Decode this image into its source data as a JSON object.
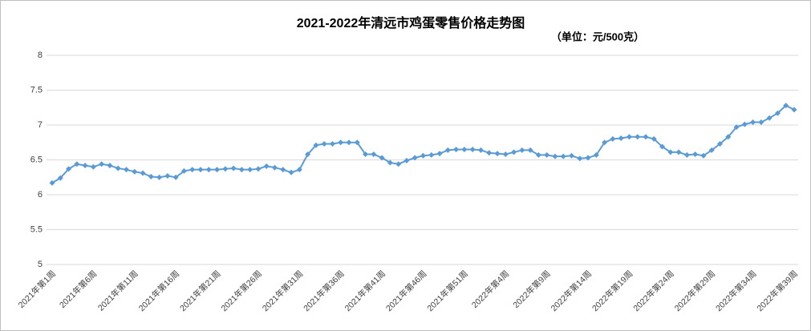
{
  "chart_data": {
    "type": "line",
    "title": "2021-2022年清远市鸡蛋零售价格走势图",
    "subtitle": "（单位：元/500克）",
    "categories": [
      "2021年第1周",
      null,
      null,
      null,
      null,
      "2021年第6周",
      null,
      null,
      null,
      null,
      "2021年第11周",
      null,
      null,
      null,
      null,
      "2021年第16周",
      null,
      null,
      null,
      null,
      "2021年第21周",
      null,
      null,
      null,
      null,
      "2021年第26周",
      null,
      null,
      null,
      null,
      "2021年第31周",
      null,
      null,
      null,
      null,
      "2021年第36周",
      null,
      null,
      null,
      null,
      "2021年第41周",
      null,
      null,
      null,
      null,
      "2021年第46周",
      null,
      null,
      null,
      null,
      "2021年第51周",
      null,
      null,
      null,
      null,
      "2022年第4周",
      null,
      null,
      null,
      null,
      "2022年第9周",
      null,
      null,
      null,
      null,
      "2022年第14周",
      null,
      null,
      null,
      null,
      "2022年第19周",
      null,
      null,
      null,
      null,
      "2022年第24周",
      null,
      null,
      null,
      null,
      "2022年第29周",
      null,
      null,
      null,
      null,
      "2022年第34周",
      null,
      null,
      null,
      null,
      "2022年第39周"
    ],
    "values": [
      6.17,
      6.24,
      6.37,
      6.44,
      6.42,
      6.4,
      6.44,
      6.42,
      6.38,
      6.36,
      6.33,
      6.31,
      6.26,
      6.25,
      6.27,
      6.25,
      6.34,
      6.36,
      6.36,
      6.36,
      6.36,
      6.37,
      6.38,
      6.36,
      6.36,
      6.37,
      6.41,
      6.39,
      6.36,
      6.32,
      6.36,
      6.58,
      6.71,
      6.73,
      6.73,
      6.75,
      6.75,
      6.75,
      6.58,
      6.58,
      6.53,
      6.46,
      6.44,
      6.49,
      6.53,
      6.56,
      6.57,
      6.59,
      6.64,
      6.65,
      6.65,
      6.65,
      6.64,
      6.6,
      6.59,
      6.58,
      6.61,
      6.64,
      6.64,
      6.57,
      6.57,
      6.55,
      6.55,
      6.56,
      6.52,
      6.53,
      6.57,
      6.75,
      6.8,
      6.81,
      6.83,
      6.83,
      6.83,
      6.8,
      6.69,
      6.61,
      6.61,
      6.57,
      6.58,
      6.56,
      6.64,
      6.73,
      6.83,
      6.97,
      7.01,
      7.04,
      7.04,
      7.1,
      7.17,
      7.28,
      7.22
    ],
    "color": "#5b9bd5",
    "ylim": [
      5,
      8
    ],
    "yticks": [
      5,
      5.5,
      6,
      6.5,
      7,
      7.5,
      8
    ],
    "grid": true
  }
}
